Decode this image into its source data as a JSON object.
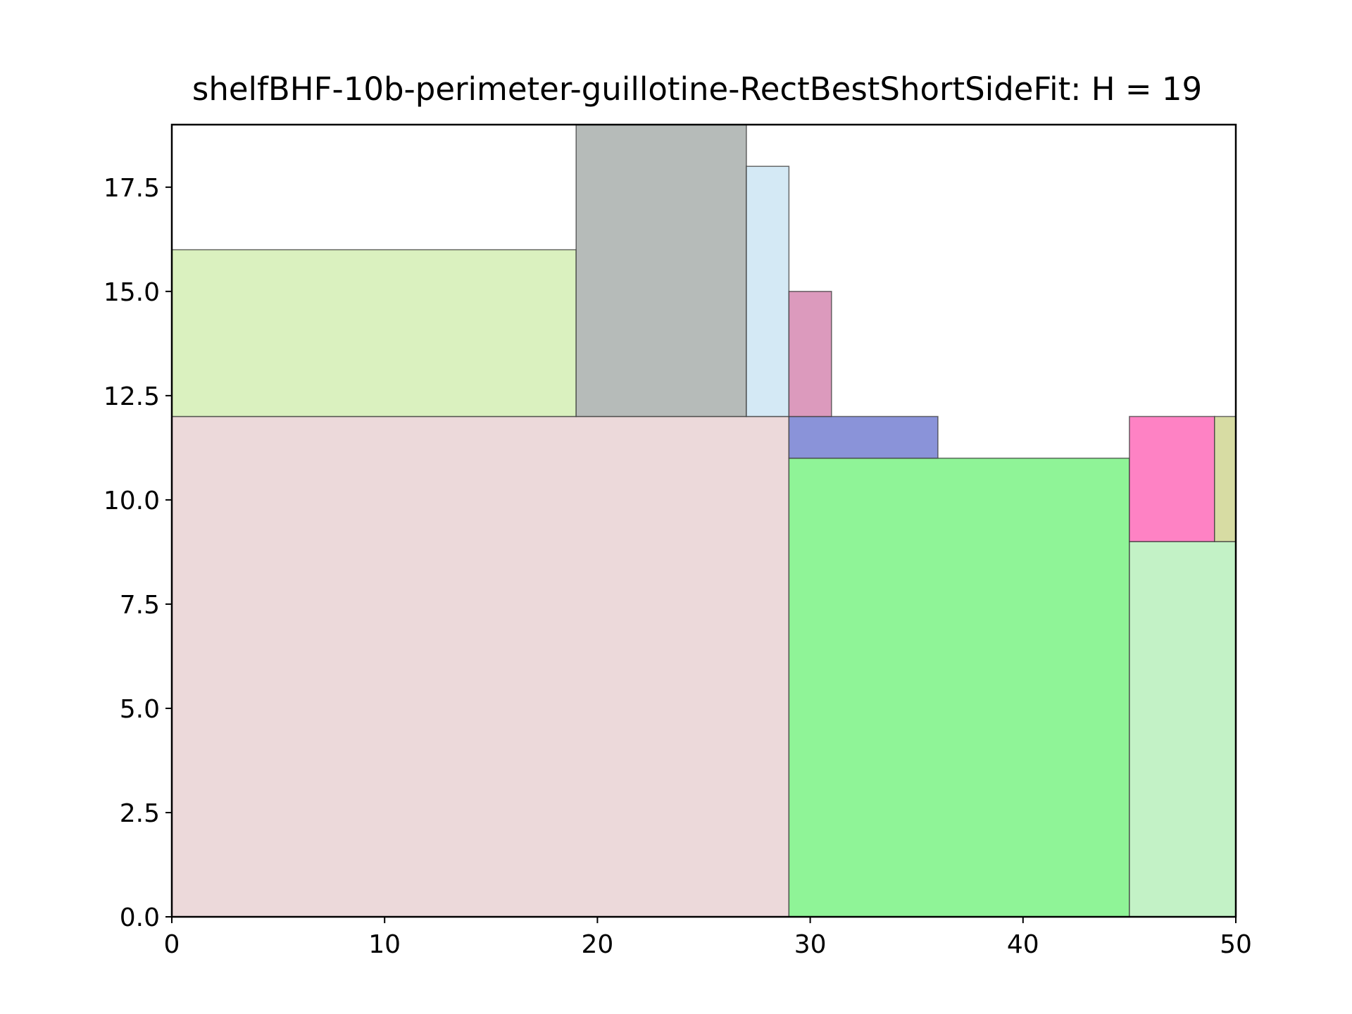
{
  "chart_data": {
    "type": "bar",
    "title": "shelfBHF-10b-perimeter-guillotine-RectBestShortSideFit: H = 19",
    "xlabel": "",
    "ylabel": "",
    "xlim": [
      0,
      50
    ],
    "ylim": [
      0,
      19
    ],
    "grid": false,
    "x_ticks": [
      "0",
      "10",
      "20",
      "30",
      "40",
      "50"
    ],
    "y_ticks": [
      "0.0",
      "2.5",
      "5.0",
      "7.5",
      "10.0",
      "12.5",
      "15.0",
      "17.5"
    ],
    "rectangles": [
      {
        "x": 0,
        "y": 0,
        "w": 29,
        "h": 12,
        "color": "#ecd9da"
      },
      {
        "x": 29,
        "y": 0,
        "w": 16,
        "h": 11,
        "color": "#8ff497"
      },
      {
        "x": 45,
        "y": 0,
        "w": 5,
        "h": 9,
        "color": "#c3f2c6"
      },
      {
        "x": 45,
        "y": 9,
        "w": 4,
        "h": 3,
        "color": "#fe82c4"
      },
      {
        "x": 49,
        "y": 9,
        "w": 1,
        "h": 3,
        "color": "#d7dca3"
      },
      {
        "x": 29,
        "y": 11,
        "w": 7,
        "h": 1,
        "color": "#8a93d9"
      },
      {
        "x": 0,
        "y": 12,
        "w": 19,
        "h": 4,
        "color": "#daf1bf"
      },
      {
        "x": 19,
        "y": 12,
        "w": 8,
        "h": 7,
        "color": "#b6bbb9"
      },
      {
        "x": 27,
        "y": 12,
        "w": 2,
        "h": 6,
        "color": "#d4e9f5"
      },
      {
        "x": 29,
        "y": 12,
        "w": 2,
        "h": 3,
        "color": "#dc9abd"
      }
    ]
  }
}
